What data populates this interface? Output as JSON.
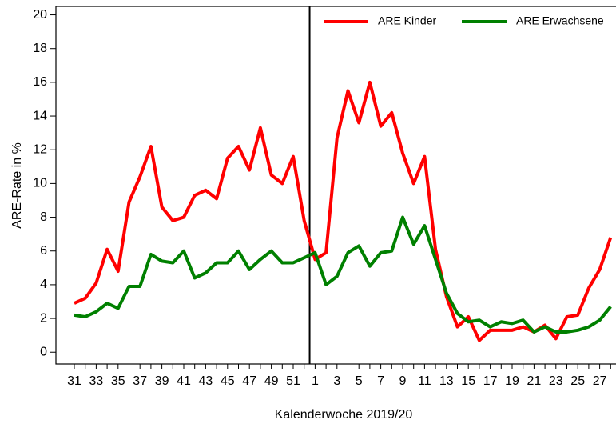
{
  "chart_data": {
    "type": "line",
    "xlabel": "Kalenderwoche 2019/20",
    "ylabel": "ARE-Rate in %",
    "categories": [
      "31",
      null,
      "33",
      null,
      "35",
      null,
      "37",
      null,
      "39",
      null,
      "41",
      null,
      "43",
      null,
      "45",
      null,
      "47",
      null,
      "49",
      null,
      "51",
      null,
      "1",
      null,
      "3",
      null,
      "5",
      null,
      "7",
      null,
      "9",
      null,
      "11",
      null,
      "13",
      null,
      "15",
      null,
      "17",
      null,
      "19",
      null,
      "21",
      null,
      "23",
      null,
      "25",
      null,
      "27",
      null
    ],
    "series": [
      {
        "name": "ARE Kinder",
        "color": "#ff0000",
        "values": [
          2.9,
          3.2,
          4.1,
          6.1,
          4.8,
          8.9,
          10.4,
          12.2,
          8.6,
          7.8,
          8.0,
          9.3,
          9.6,
          9.1,
          11.5,
          12.2,
          10.8,
          13.3,
          10.5,
          10.0,
          11.6,
          7.8,
          5.5,
          5.9,
          12.7,
          15.5,
          13.6,
          16.0,
          13.4,
          14.2,
          11.8,
          10.0,
          11.6,
          6.1,
          3.3,
          1.5,
          2.1,
          0.7,
          1.3,
          1.3,
          1.3,
          1.5,
          1.2,
          1.6,
          0.8,
          2.1,
          2.2,
          3.8,
          4.9,
          6.8
        ]
      },
      {
        "name": "ARE Erwachsene",
        "color": "#008000",
        "values": [
          2.2,
          2.1,
          2.4,
          2.9,
          2.6,
          3.9,
          3.9,
          5.8,
          5.4,
          5.3,
          6.0,
          4.4,
          4.7,
          5.3,
          5.3,
          6.0,
          4.9,
          5.5,
          6.0,
          5.3,
          5.3,
          5.6,
          5.9,
          4.0,
          4.5,
          5.9,
          6.3,
          5.1,
          5.9,
          6.0,
          8.0,
          6.4,
          7.5,
          5.5,
          3.5,
          2.3,
          1.8,
          1.9,
          1.5,
          1.8,
          1.7,
          1.9,
          1.2,
          1.5,
          1.2,
          1.2,
          1.3,
          1.5,
          1.9,
          2.7
        ]
      }
    ],
    "ylim": [
      -0.7,
      20.5
    ],
    "yticks": [
      0,
      2,
      4,
      6,
      8,
      10,
      12,
      14,
      16,
      18,
      20
    ],
    "grid": false,
    "legend": "top-right"
  }
}
